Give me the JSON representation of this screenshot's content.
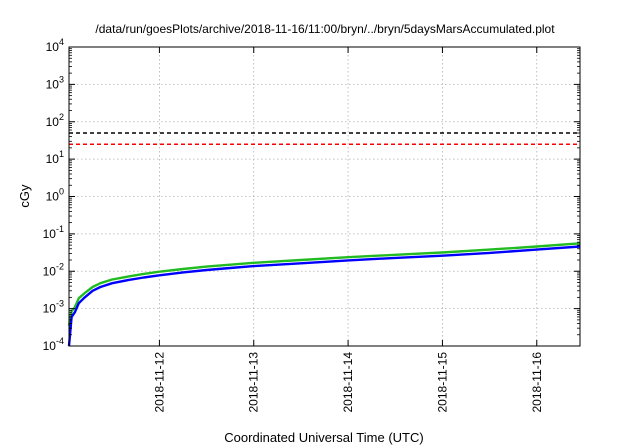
{
  "chart_data": {
    "type": "line",
    "title": "/data/run/goesPlots/archive/2018-11-16/11:00/bryn/../bryn/5daysMarsAccumulated.plot",
    "xlabel": "Coordinated Universal Time (UTC)",
    "ylabel": "cGy",
    "yscale": "log",
    "ylim": [
      0.0001,
      10000
    ],
    "y_ticks": [
      {
        "base": "10",
        "exp": "4"
      },
      {
        "base": "10",
        "exp": "3"
      },
      {
        "base": "10",
        "exp": "2"
      },
      {
        "base": "10",
        "exp": "1"
      },
      {
        "base": "10",
        "exp": "0"
      },
      {
        "base": "10",
        "exp": "-1"
      },
      {
        "base": "10",
        "exp": "-2"
      },
      {
        "base": "10",
        "exp": "-3"
      },
      {
        "base": "10",
        "exp": "-4"
      }
    ],
    "xlim": [
      "2018-11-11T01:00",
      "2018-11-16T11:00"
    ],
    "x_ticks": [
      "2018-11-12",
      "2018-11-13",
      "2018-11-14",
      "2018-11-15",
      "2018-11-16"
    ],
    "grid": true,
    "reference_lines": [
      {
        "y": 50,
        "color": "#000000",
        "style": "dashed"
      },
      {
        "y": 25,
        "color": "#ff0000",
        "style": "dashed"
      }
    ],
    "series": [
      {
        "color": "#22bb22",
        "x": [
          "2018-11-11T01:00",
          "2018-11-11T01:40",
          "2018-11-11T02:30",
          "2018-11-11T03:30",
          "2018-11-11T05:00",
          "2018-11-11T07:00",
          "2018-11-11T09:00",
          "2018-11-11T12:00",
          "2018-11-11T16:00",
          "2018-11-11T20:00",
          "2018-11-12T00:00",
          "2018-11-12T06:00",
          "2018-11-12T12:00",
          "2018-11-12T18:00",
          "2018-11-13T00:00",
          "2018-11-13T12:00",
          "2018-11-14T00:00",
          "2018-11-14T12:00",
          "2018-11-15T00:00",
          "2018-11-15T12:00",
          "2018-11-16T00:00",
          "2018-11-16T11:00"
        ],
        "y": [
          0.00035,
          0.00085,
          0.0011,
          0.0019,
          0.0026,
          0.0038,
          0.0048,
          0.006,
          0.0072,
          0.0085,
          0.0097,
          0.0115,
          0.0133,
          0.015,
          0.0168,
          0.02,
          0.0238,
          0.0275,
          0.0318,
          0.038,
          0.046,
          0.056
        ]
      },
      {
        "color": "#0000ff",
        "x": [
          "2018-11-11T01:00",
          "2018-11-11T01:40",
          "2018-11-11T02:30",
          "2018-11-11T03:30",
          "2018-11-11T05:00",
          "2018-11-11T07:00",
          "2018-11-11T09:00",
          "2018-11-11T12:00",
          "2018-11-11T16:00",
          "2018-11-11T20:00",
          "2018-11-12T00:00",
          "2018-11-12T06:00",
          "2018-11-12T12:00",
          "2018-11-12T18:00",
          "2018-11-13T00:00",
          "2018-11-13T12:00",
          "2018-11-14T00:00",
          "2018-11-14T12:00",
          "2018-11-15T00:00",
          "2018-11-15T12:00",
          "2018-11-16T00:00",
          "2018-11-16T11:00"
        ],
        "y": [
          0.0001,
          0.0006,
          0.0008,
          0.0014,
          0.002,
          0.003,
          0.0038,
          0.0048,
          0.0058,
          0.0068,
          0.0078,
          0.0093,
          0.0108,
          0.0122,
          0.0137,
          0.0163,
          0.0195,
          0.0227,
          0.026,
          0.031,
          0.038,
          0.046
        ]
      }
    ]
  }
}
